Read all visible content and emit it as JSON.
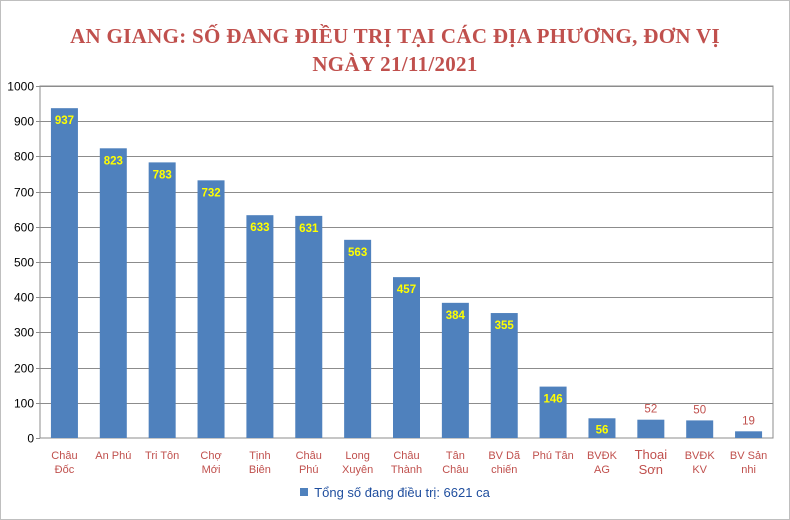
{
  "chart_data": {
    "type": "bar",
    "title_line1": "AN GIANG: SỐ ĐANG ĐIỀU  TRỊ TẠI CÁC ĐỊA PHƯƠNG, ĐƠN VỊ",
    "title_line2": "NGÀY 21/11/2021",
    "categories": [
      [
        "Châu",
        "Đốc"
      ],
      [
        "An Phú"
      ],
      [
        "Tri Tôn"
      ],
      [
        "Chợ",
        "Mới"
      ],
      [
        "Tịnh",
        "Biên"
      ],
      [
        "Châu",
        "Phú"
      ],
      [
        "Long",
        "Xuyên"
      ],
      [
        "Châu",
        "Thành"
      ],
      [
        "Tân",
        "Châu"
      ],
      [
        "BV Dã",
        "chiến"
      ],
      [
        "Phú Tân"
      ],
      [
        "BVĐK",
        "AG"
      ],
      [
        "Thoại",
        "Sơn"
      ],
      [
        "BVĐK",
        "KV"
      ],
      [
        "BV Sản",
        "nhi"
      ]
    ],
    "series": [
      {
        "name": "Tổng số  đang điều trị:  6621 ca",
        "values": [
          937,
          823,
          783,
          732,
          633,
          631,
          563,
          457,
          384,
          355,
          146,
          56,
          52,
          50,
          19
        ]
      }
    ],
    "ylim": [
      0,
      1000
    ],
    "yticks": [
      0,
      100,
      200,
      300,
      400,
      500,
      600,
      700,
      800,
      900,
      1000
    ],
    "grid": true,
    "legend_position": "bottom",
    "bar_color": "#4f81bd",
    "inside_label_color": "#ffff00",
    "outside_label_color": "#c0504d",
    "category_color": "#c0504d",
    "title_color": "#c0504d"
  }
}
